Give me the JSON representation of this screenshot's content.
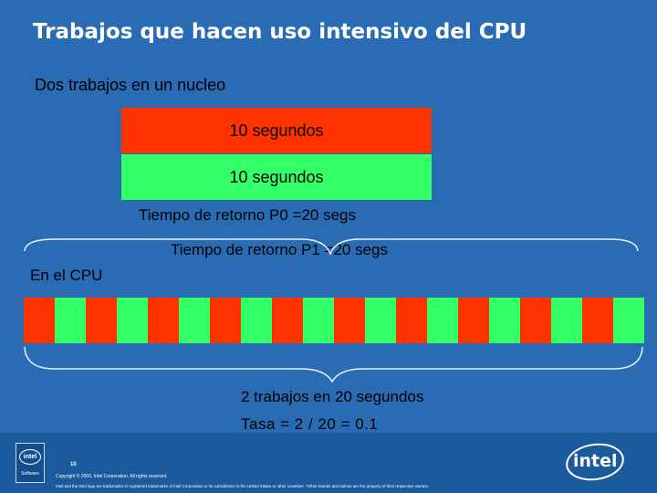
{
  "slide": {
    "title": "Trabajos que hacen uso intensivo del CPU",
    "subtitle": "Dos trabajos en un nucleo"
  },
  "jobs": [
    {
      "label": "10 segundos",
      "color": "#ff3300"
    },
    {
      "label": "10 segundos",
      "color": "#33ff66"
    }
  ],
  "turnaround": {
    "p0": "Tiempo de retorno P0 =20 segs",
    "p1": "Tiempo de retorno P1 =20 segs"
  },
  "cpu": {
    "label": "En el CPU",
    "segments": 20,
    "colors": [
      "#ff3300",
      "#33ff66"
    ]
  },
  "result": {
    "summary": "2 trabajos en 20 segundos",
    "rate": "Tasa = 2 / 20 = 0.1"
  },
  "footer": {
    "page_number": "10",
    "badge_logo": "intel",
    "badge_label": "Software",
    "copyright": "Copyright © 2006, Intel Corporation. All rights reserved.",
    "legal": "Intel and the Intel logo are trademarks or registered trademarks of Intel Corporation or its subsidiaries in the United States or other countries. *Other brands and names are the property of their respective owners.",
    "logo": "intel"
  }
}
